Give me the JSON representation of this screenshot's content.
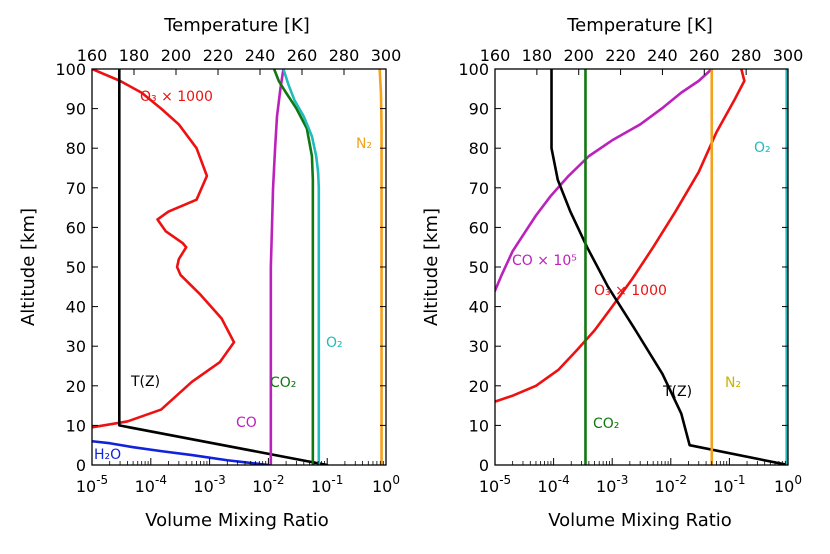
{
  "figure": {
    "top_axis_title": "Temperature [K]",
    "bottom_axis_title": "Volume Mixing Ratio",
    "left_axis_title": "Altitude [km]"
  },
  "chart_data": [
    {
      "type": "line",
      "panel": "left",
      "x_scale": "log",
      "xlim": [
        1e-05,
        1.0
      ],
      "xlabel": "Volume Mixing Ratio",
      "x_ticks": [
        "10-5",
        "10-4",
        "10-3",
        "10-2",
        "10-1",
        "100"
      ],
      "x2lim": [
        160,
        300
      ],
      "x2label": "Temperature [K]",
      "x2_ticks": [
        160,
        180,
        200,
        220,
        240,
        260,
        280,
        300
      ],
      "ylim": [
        0,
        100
      ],
      "ylabel": "Altitude [km]",
      "y_ticks": [
        0,
        10,
        20,
        30,
        40,
        50,
        60,
        70,
        80,
        90,
        100
      ],
      "series": [
        {
          "name": "O3 ×1000",
          "label": "O₃  × 1000",
          "color": "#ee1111",
          "axis": "vmr",
          "x": [
            1e-05,
            3e-05,
            7e-05,
            0.00015,
            0.0003,
            0.0006,
            0.0009,
            0.0006,
            0.0002,
            0.00013,
            0.00018,
            0.00035,
            0.0004,
            0.0003,
            0.00028,
            0.00032,
            0.0007,
            0.0016,
            0.0026,
            0.0015,
            0.0005,
            0.00015,
            4e-05,
            1e-05,
            8e-06
          ],
          "y": [
            100,
            97,
            94,
            90,
            86,
            80,
            73,
            67,
            64,
            62,
            59,
            56,
            55,
            52,
            50,
            48,
            43,
            37,
            31,
            26,
            21,
            14,
            11,
            9.5,
            9
          ]
        },
        {
          "name": "T(Z)",
          "label": "T(Z)",
          "color": "#000000",
          "axis": "temperature",
          "x": [
            173,
            173,
            173,
            272
          ],
          "y": [
            100,
            90,
            10,
            0
          ]
        },
        {
          "name": "CO",
          "label": "CO",
          "color": "#bb22bb",
          "axis": "vmr",
          "x": [
            0.018,
            0.016,
            0.014,
            0.013,
            0.012,
            0.0115,
            0.011,
            0.011,
            0.011
          ],
          "y": [
            100,
            95,
            88,
            80,
            70,
            60,
            50,
            30,
            0
          ]
        },
        {
          "name": "CO2",
          "label": "CO₂",
          "color": "#117711",
          "axis": "vmr",
          "x": [
            0.0125,
            0.015,
            0.02,
            0.03,
            0.045,
            0.055,
            0.057,
            0.057,
            0.057
          ],
          "y": [
            100,
            97,
            94,
            90,
            85,
            78,
            72,
            60,
            0
          ]
        },
        {
          "name": "O2",
          "label": "O₂",
          "color": "#22bbbb",
          "axis": "vmr",
          "x": [
            0.018,
            0.022,
            0.028,
            0.04,
            0.055,
            0.065,
            0.07,
            0.072,
            0.072
          ],
          "y": [
            100,
            96,
            92,
            88,
            83,
            78,
            74,
            70,
            0
          ]
        },
        {
          "name": "N2",
          "label": "N₂",
          "color": "#f5a11a",
          "axis": "vmr",
          "x": [
            0.78,
            0.8,
            0.82,
            0.83,
            0.84,
            0.84
          ],
          "y": [
            100,
            97,
            94,
            90,
            85,
            0
          ]
        },
        {
          "name": "H2O",
          "label": "H₂O",
          "color": "#1122dd",
          "axis": "vmr",
          "x": [
            1e-05,
            2e-05,
            5e-05,
            0.00015,
            0.0005,
            0.002,
            0.01
          ],
          "y": [
            6,
            5.5,
            4.5,
            3.5,
            2.5,
            1.2,
            0
          ]
        }
      ]
    },
    {
      "type": "line",
      "panel": "right",
      "x_scale": "log",
      "xlim": [
        1e-05,
        1.0
      ],
      "xlabel": "Volume Mixing Ratio",
      "x_ticks": [
        "10-5",
        "10-4",
        "10-3",
        "10-2",
        "10-1",
        "100"
      ],
      "x2lim": [
        160,
        300
      ],
      "x2label": "Temperature [K]",
      "x2_ticks": [
        160,
        180,
        200,
        220,
        240,
        260,
        280,
        300
      ],
      "ylim": [
        0,
        100
      ],
      "ylabel": "Altitude [km]",
      "y_ticks": [
        0,
        10,
        20,
        30,
        40,
        50,
        60,
        70,
        80,
        90,
        100
      ],
      "series": [
        {
          "name": "CO ×10^5",
          "label": "CO × 10⁵",
          "color": "#bb22bb",
          "axis": "vmr",
          "x": [
            1e-05,
            1.3e-05,
            2e-05,
            3e-05,
            5e-05,
            9e-05,
            0.00018,
            0.0004,
            0.001,
            0.003,
            0.007,
            0.015,
            0.03,
            0.05
          ],
          "y": [
            44,
            48,
            54,
            58,
            63,
            68,
            73,
            78,
            82,
            86,
            90,
            94,
            97,
            100
          ]
        },
        {
          "name": "O3 ×1000",
          "label": "O₃ × 1000",
          "color": "#ee1111",
          "axis": "vmr",
          "x": [
            1e-05,
            2e-05,
            5e-05,
            0.00012,
            0.00025,
            0.0005,
            0.001,
            0.0022,
            0.005,
            0.012,
            0.03,
            0.06,
            0.12,
            0.18,
            0.16
          ],
          "y": [
            16,
            17.5,
            20,
            24,
            29,
            34,
            40,
            47,
            55,
            64,
            74,
            84,
            92,
            97,
            100
          ]
        },
        {
          "name": "T(Z)",
          "label": "T(Z)",
          "color": "#000000",
          "axis": "temperature",
          "x": [
            187,
            187,
            187,
            190,
            196,
            204,
            214,
            226,
            240,
            249,
            253,
            300
          ],
          "y": [
            100,
            90,
            80,
            72,
            64,
            55,
            45,
            35,
            23,
            13,
            5,
            0
          ]
        },
        {
          "name": "CO2",
          "label": "CO₂",
          "color": "#117711",
          "axis": "vmr",
          "x": [
            0.00035,
            0.00035
          ],
          "y": [
            100,
            0
          ]
        },
        {
          "name": "N2",
          "label": "N₂",
          "color": "#f5a11a",
          "axis": "vmr",
          "x": [
            0.05,
            0.05
          ],
          "y": [
            100,
            0
          ]
        },
        {
          "name": "O2",
          "label": "O₂",
          "color": "#22bbbb",
          "axis": "vmr",
          "x": [
            0.95,
            0.95
          ],
          "y": [
            100,
            0
          ]
        }
      ]
    }
  ],
  "annotations": {
    "left": {
      "o3": "O₃  × 1000",
      "n2": "N₂",
      "co2": "CO₂",
      "o2": "O₂",
      "tz": "T(Z)",
      "co": "CO",
      "h2o": "H₂O"
    },
    "right": {
      "o2": "O₂",
      "co": "CO × 10⁵",
      "o3": "O₃ × 1000",
      "n2": "N₂",
      "tz": "T(Z)",
      "co2": "CO₂"
    },
    "label_colors": {
      "o3": "#ee1111",
      "n2": "#f5a11a",
      "n2_right": "#c9b300",
      "co2": "#117711",
      "o2": "#22bbbb",
      "tz": "#000000",
      "co": "#bb22bb",
      "h2o": "#1122dd"
    }
  }
}
